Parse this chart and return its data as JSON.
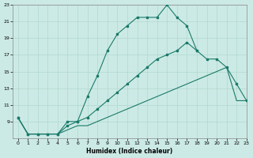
{
  "xlabel": "Humidex (Indice chaleur)",
  "background_color": "#cceae5",
  "grid_color": "#b0d8d0",
  "line_color": "#1a7a6a",
  "line1_x": [
    0,
    1,
    2,
    3,
    4,
    5,
    6,
    7,
    8,
    9,
    10,
    11,
    12,
    13,
    14,
    15,
    16,
    17,
    18
  ],
  "line1_y": [
    9.5,
    7.5,
    7.5,
    7.5,
    7.5,
    9.0,
    9.0,
    12.0,
    14.5,
    17.5,
    19.5,
    20.5,
    21.5,
    21.5,
    21.5,
    23.0,
    21.5,
    20.5,
    17.5
  ],
  "line2_x": [
    0,
    1,
    2,
    3,
    4,
    5,
    6,
    7,
    8,
    9,
    10,
    11,
    12,
    13,
    14,
    15,
    16,
    17,
    18,
    19,
    20,
    21,
    22,
    23
  ],
  "line2_y": [
    9.5,
    7.5,
    7.5,
    7.5,
    7.5,
    8.5,
    9.0,
    9.5,
    10.5,
    11.5,
    12.5,
    13.5,
    14.5,
    15.5,
    16.5,
    17.0,
    17.5,
    18.5,
    17.5,
    16.5,
    16.5,
    15.5,
    13.5,
    11.5
  ],
  "line3_x": [
    0,
    1,
    2,
    3,
    4,
    5,
    6,
    7,
    8,
    9,
    10,
    11,
    12,
    13,
    14,
    15,
    16,
    17,
    18,
    19,
    20,
    21,
    22,
    23
  ],
  "line3_y": [
    9.5,
    7.5,
    7.5,
    7.5,
    7.5,
    8.0,
    8.5,
    8.5,
    9.0,
    9.5,
    10.0,
    10.5,
    11.0,
    11.5,
    12.0,
    12.5,
    13.0,
    13.5,
    14.0,
    14.5,
    15.0,
    15.5,
    11.5,
    11.5
  ],
  "xlim": [
    -0.5,
    23
  ],
  "ylim": [
    7,
    23
  ],
  "yticks": [
    9,
    11,
    13,
    15,
    17,
    19,
    21,
    23
  ],
  "xticks": [
    0,
    1,
    2,
    3,
    4,
    5,
    6,
    7,
    8,
    9,
    10,
    11,
    12,
    13,
    14,
    15,
    16,
    17,
    18,
    19,
    20,
    21,
    22,
    23
  ]
}
